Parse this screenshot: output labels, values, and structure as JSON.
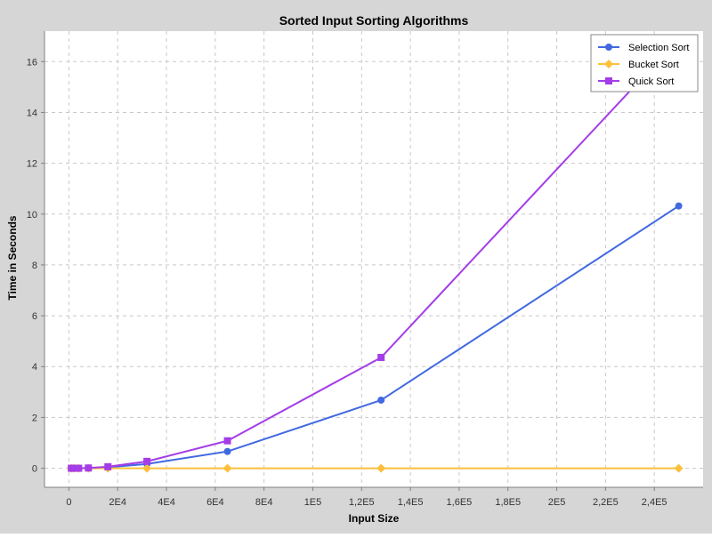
{
  "chart_data": {
    "type": "line",
    "title": "Sorted Input Sorting Algorithms",
    "xlabel": "Input Size",
    "ylabel": "Time in Seconds",
    "xlim": [
      -10000,
      260000
    ],
    "ylim": [
      -0.75,
      17.2
    ],
    "x_ticks": [
      0,
      20000,
      40000,
      60000,
      80000,
      100000,
      120000,
      140000,
      160000,
      180000,
      200000,
      220000,
      240000
    ],
    "x_tick_labels": [
      "0",
      "2E4",
      "4E4",
      "6E4",
      "8E4",
      "1E5",
      "1,2E5",
      "1,4E5",
      "1,6E5",
      "1,8E5",
      "2E5",
      "2,2E5",
      "2,4E5"
    ],
    "y_ticks": [
      0,
      2,
      4,
      6,
      8,
      10,
      12,
      14,
      16
    ],
    "y_tick_labels": [
      "0",
      "2",
      "4",
      "6",
      "8",
      "10",
      "12",
      "14",
      "16"
    ],
    "grid": true,
    "legend_position": "top-right",
    "series": [
      {
        "name": "Selection Sort",
        "color": "#4169e1",
        "marker": "circle",
        "x": [
          1000,
          2000,
          4000,
          8000,
          16000,
          32000,
          65000,
          128000,
          250000
        ],
        "y": [
          0.0,
          0.0,
          0.0,
          0.01,
          0.04,
          0.17,
          0.66,
          2.68,
          10.32
        ]
      },
      {
        "name": "Bucket Sort",
        "color": "#fdbf3c",
        "marker": "diamond",
        "x": [
          1000,
          2000,
          4000,
          8000,
          16000,
          32000,
          65000,
          128000,
          250000
        ],
        "y": [
          0.0,
          0.0,
          0.0,
          0.0,
          0.0,
          0.0,
          0.0,
          0.0,
          0.0
        ]
      },
      {
        "name": "Quick Sort",
        "color": "#a43de8",
        "marker": "square",
        "x": [
          1000,
          2000,
          4000,
          8000,
          16000,
          32000,
          65000,
          128000,
          250000
        ],
        "y": [
          0.0,
          0.0,
          0.0,
          0.01,
          0.06,
          0.27,
          1.08,
          4.36,
          16.9
        ]
      }
    ]
  }
}
